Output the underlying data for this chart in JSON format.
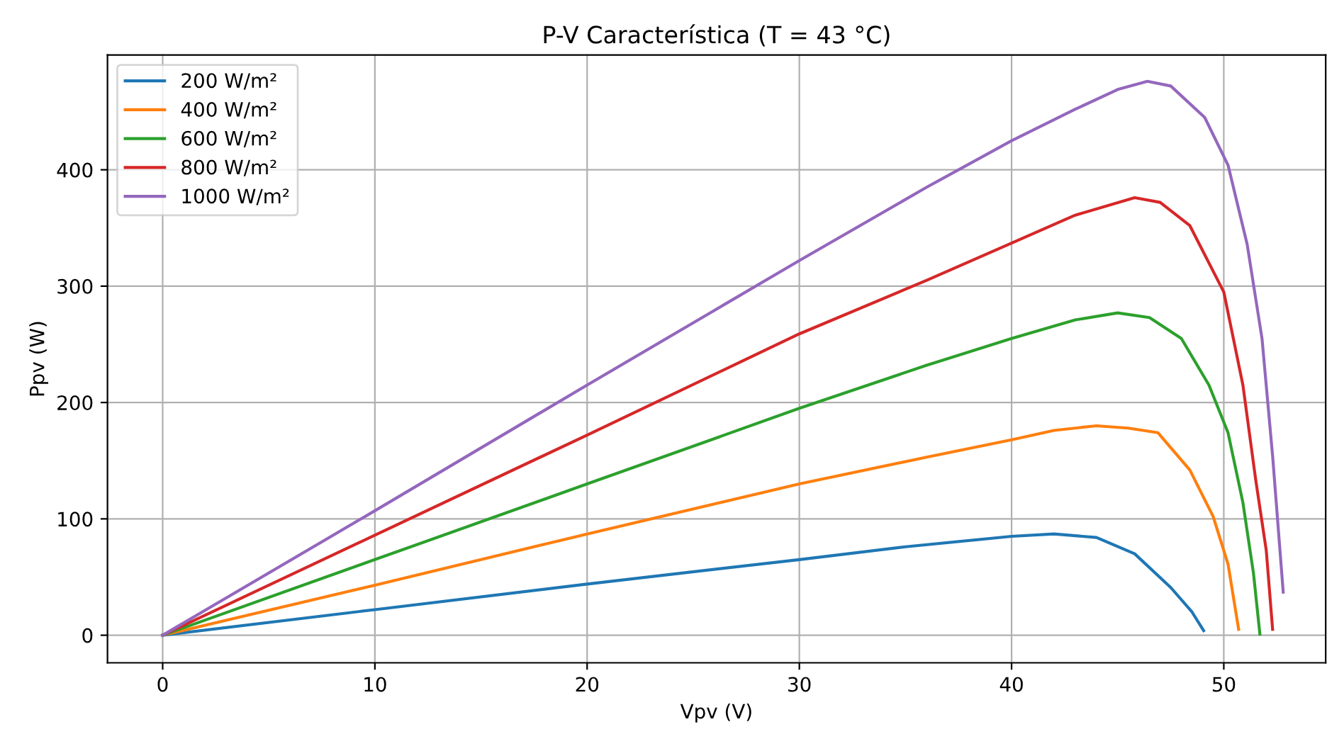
{
  "chart_data": {
    "type": "line",
    "title": "P-V Característica (T = 43 °C)",
    "xlabel": "Vpv (V)",
    "ylabel": "Ppv (W)",
    "xlim": [
      -2.6,
      54.8
    ],
    "ylim": [
      -23.7,
      498.6
    ],
    "xticks": [
      0,
      10,
      20,
      30,
      40,
      50
    ],
    "yticks": [
      0,
      100,
      200,
      300,
      400
    ],
    "grid": true,
    "legend": "top left",
    "series": [
      {
        "name": "200 W/m²",
        "color": "#1f77b4",
        "x": [
          0,
          10,
          20,
          30,
          35,
          40,
          42,
          44,
          45.8,
          47.5,
          48.5,
          49.05
        ],
        "values": [
          0,
          22,
          44,
          65,
          76,
          85,
          87,
          84,
          70,
          41,
          20,
          4
        ]
      },
      {
        "name": "400 W/m²",
        "color": "#ff7f0e",
        "x": [
          0,
          10,
          20,
          30,
          36,
          40,
          42,
          44,
          45.5,
          46.9,
          48.4,
          49.5,
          50.2,
          50.7
        ],
        "values": [
          0,
          43,
          87,
          130,
          153,
          168,
          176,
          180,
          178,
          174,
          142,
          102,
          61,
          5
        ]
      },
      {
        "name": "600 W/m²",
        "color": "#2ca02c",
        "x": [
          0,
          10,
          20,
          30,
          36,
          40,
          43,
          45,
          46.5,
          48,
          49.3,
          50.2,
          50.9,
          51.4,
          51.7
        ],
        "values": [
          0,
          65,
          130,
          195,
          232,
          255,
          271,
          277,
          273,
          255,
          215,
          174,
          114,
          53,
          1
        ]
      },
      {
        "name": "800 W/m²",
        "color": "#d62728",
        "x": [
          0,
          10,
          20,
          30,
          36,
          40,
          43,
          45.8,
          47,
          48.4,
          50,
          50.9,
          51.5,
          52,
          52.3
        ],
        "values": [
          0,
          86,
          172,
          259,
          305,
          337,
          361,
          376,
          372,
          352,
          295,
          215,
          134,
          73,
          5
        ]
      },
      {
        "name": "1000 W/m²",
        "color": "#9467bd",
        "x": [
          0,
          10,
          20,
          30,
          36,
          40,
          43,
          45,
          46.4,
          47.5,
          49.1,
          50.2,
          51.1,
          51.8,
          52.3,
          52.8
        ],
        "values": [
          0,
          107,
          215,
          322,
          385,
          425,
          452,
          469,
          476,
          472,
          445,
          404,
          336,
          255,
          154,
          37
        ]
      }
    ]
  }
}
